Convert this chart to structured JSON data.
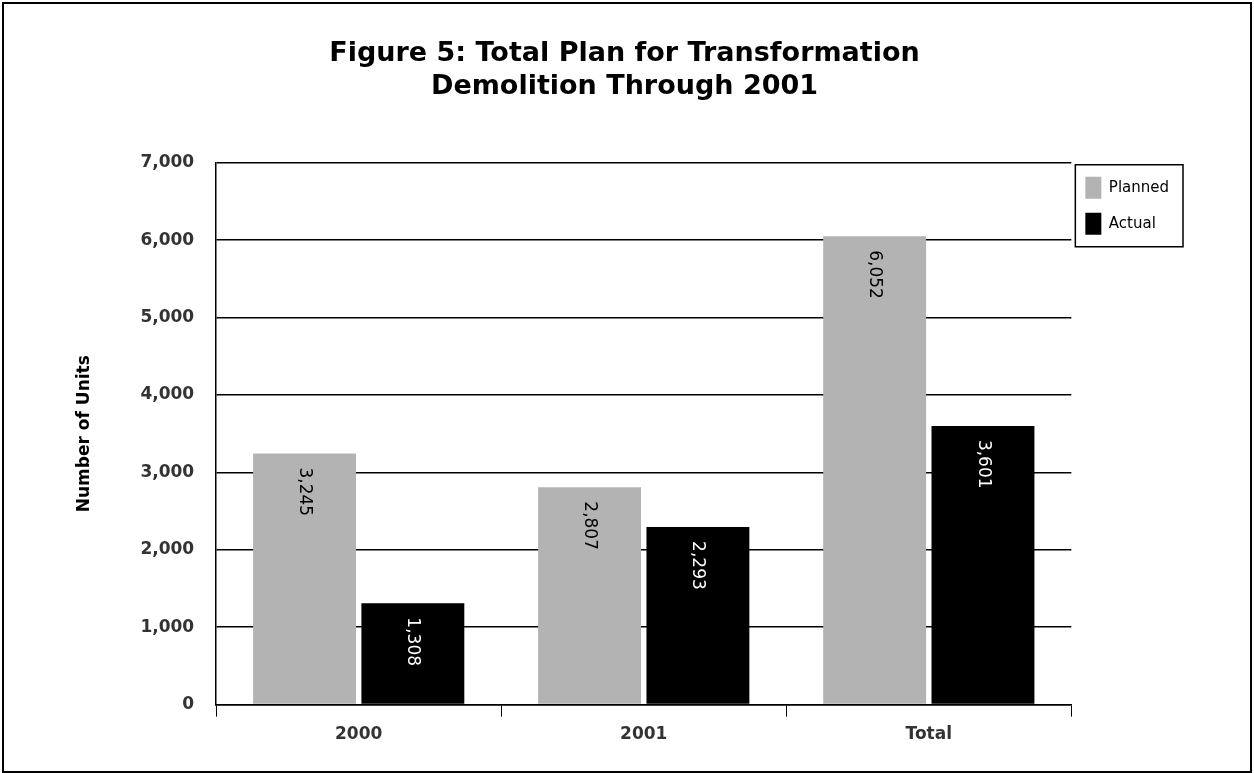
{
  "chart_data": {
    "type": "bar",
    "title": "Figure 5: Total Plan for Transformation\nDemolition Through 2001",
    "ylabel": "Number of Units",
    "categories": [
      "2000",
      "2001",
      "Total"
    ],
    "series": [
      {
        "name": "Planned",
        "color": "#b3b3b3",
        "values": [
          3245,
          2807,
          6052
        ],
        "value_labels": [
          "3,245",
          "2,807",
          "6,052"
        ]
      },
      {
        "name": "Actual",
        "color": "#000000",
        "values": [
          1308,
          2293,
          3601
        ],
        "value_labels": [
          "1,308",
          "2,293",
          "3,601"
        ]
      }
    ],
    "ylim": [
      0,
      7000
    ],
    "yticks": [
      {
        "value": 0,
        "label": "0"
      },
      {
        "value": 1000,
        "label": "1,000"
      },
      {
        "value": 2000,
        "label": "2,000"
      },
      {
        "value": 3000,
        "label": "3,000"
      },
      {
        "value": 4000,
        "label": "4,000"
      },
      {
        "value": 5000,
        "label": "5,000"
      },
      {
        "value": 6000,
        "label": "6,000"
      },
      {
        "value": 7000,
        "label": "7,000"
      }
    ],
    "grid": "y",
    "legend": "top right"
  }
}
